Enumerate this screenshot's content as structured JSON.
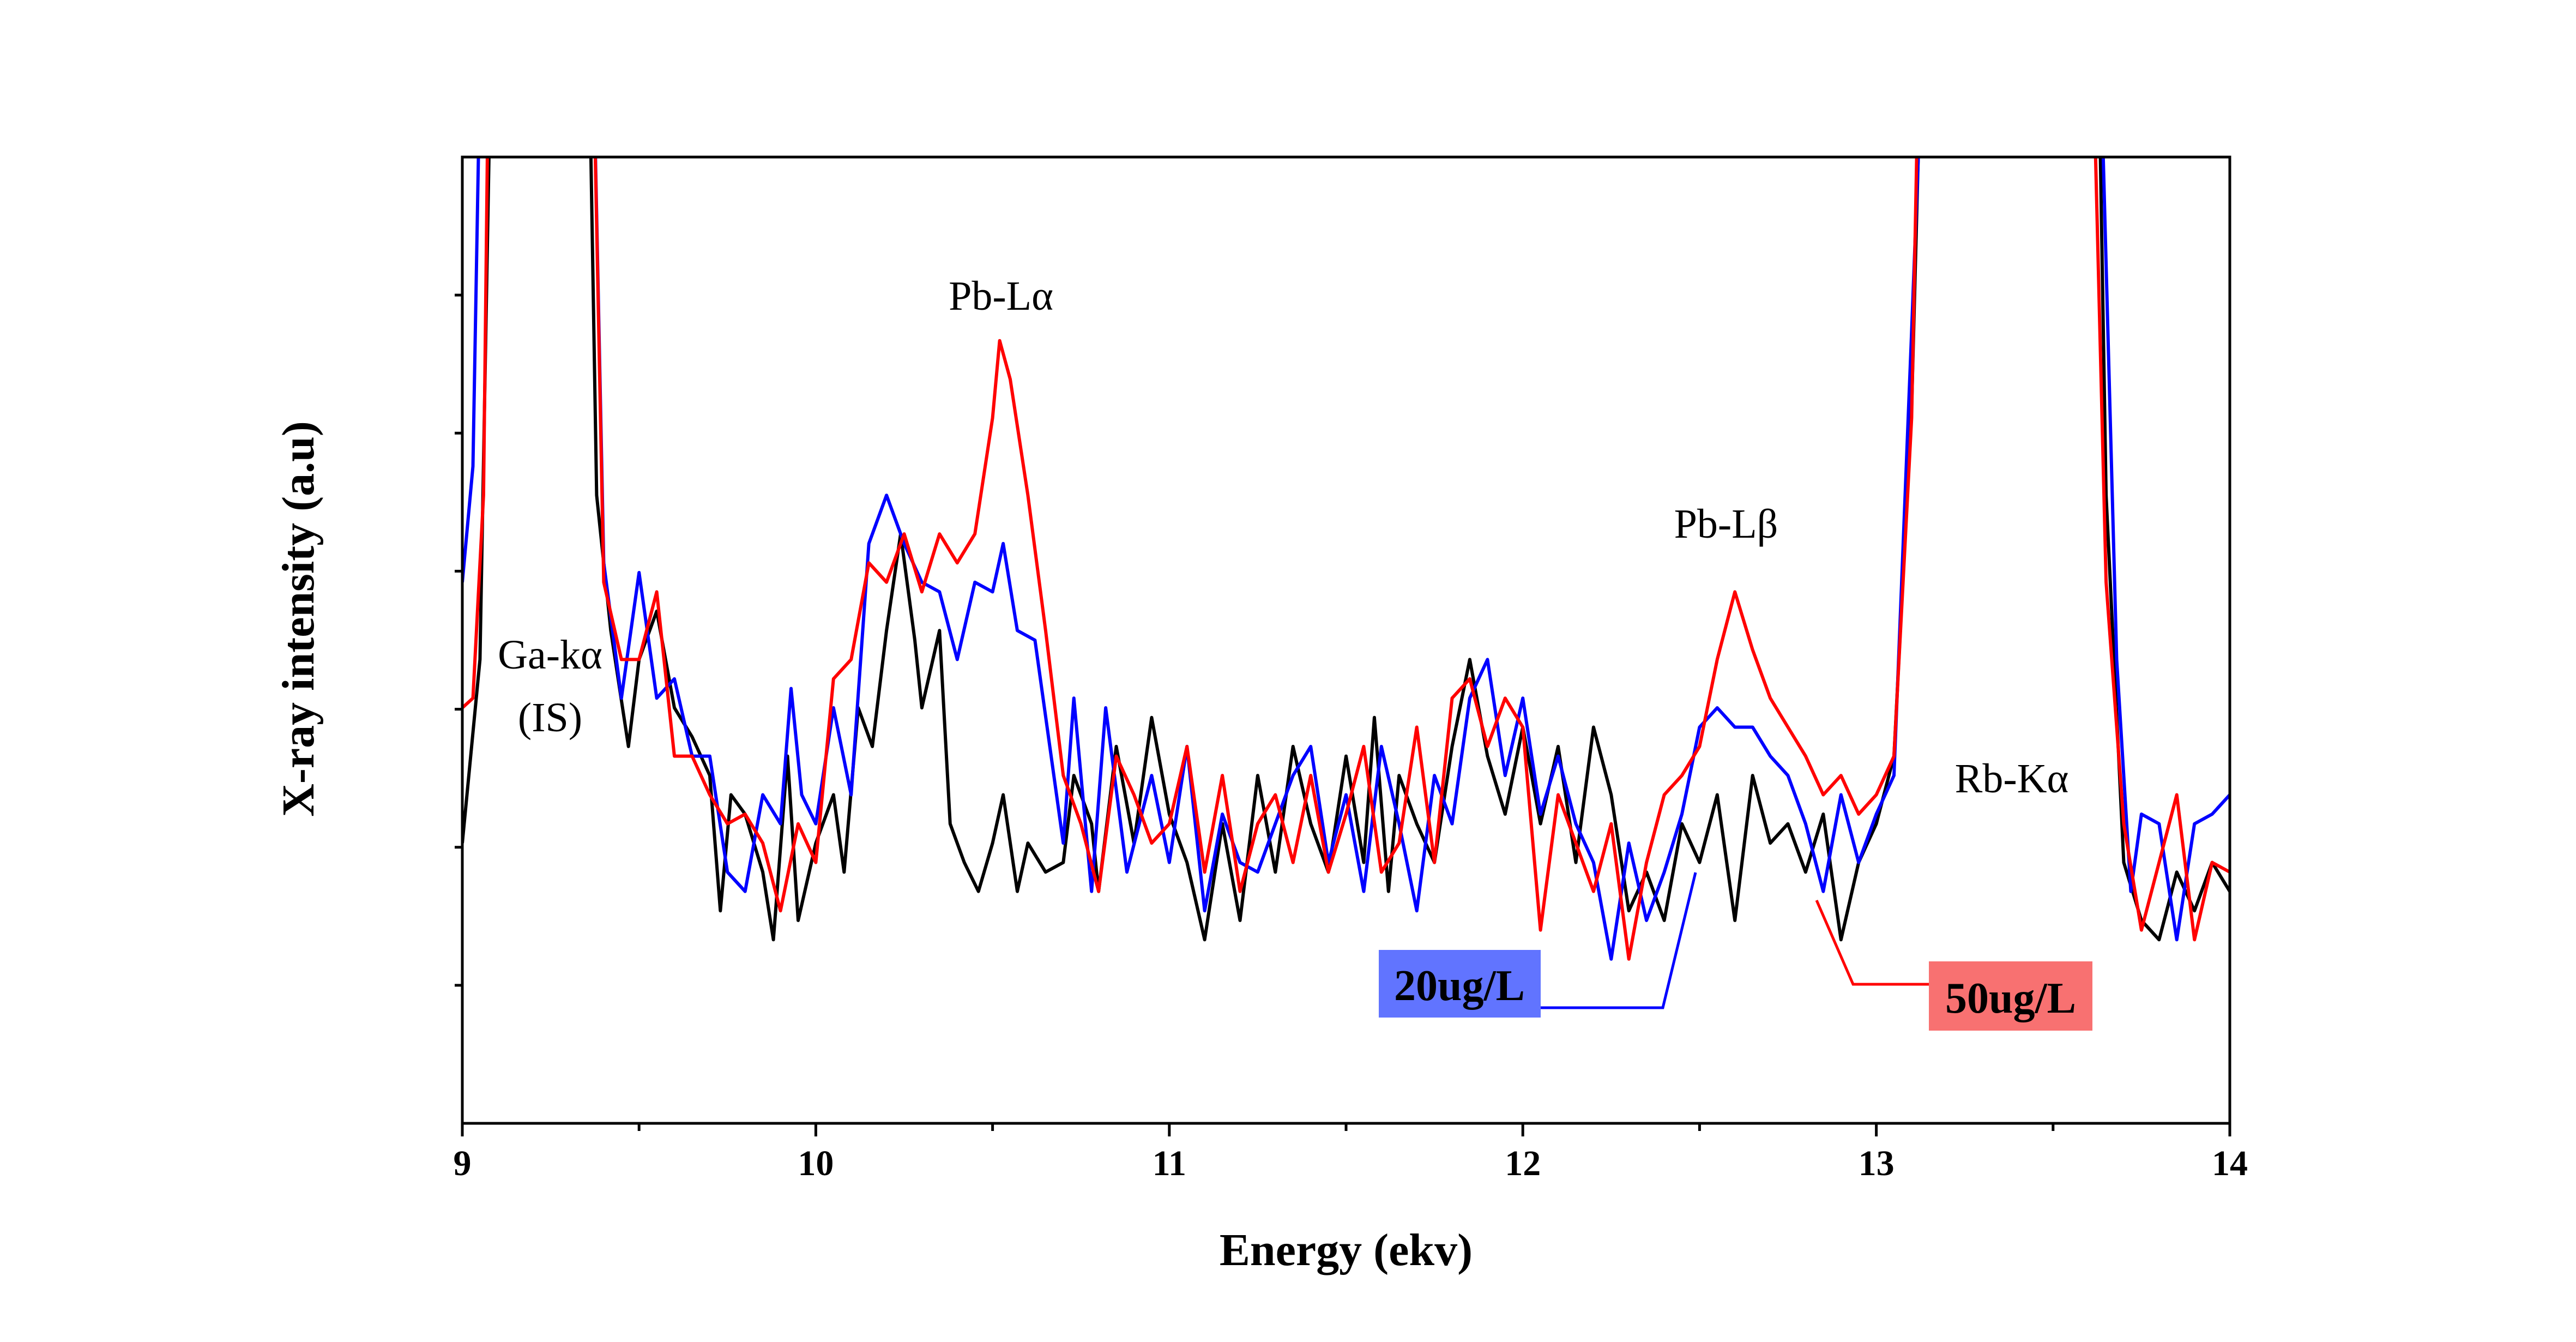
{
  "chart_data": {
    "type": "line",
    "title": "",
    "xlabel": "Energy (ekv)",
    "ylabel": "X-ray intensity (a.u)",
    "xlim": [
      9,
      14
    ],
    "ylim": [
      0,
      100
    ],
    "xticks": [
      "9",
      "10",
      "11",
      "12",
      "13",
      "14"
    ],
    "yticks_labeled": false,
    "grid": false,
    "annotations": {
      "ga": "Ga-kα",
      "is": "(IS)",
      "pb_la": "Pb-Lα",
      "pb_lb": "Pb-Lβ",
      "rb": "Rb-Kα",
      "label_20": "20ug/L",
      "label_50": "50ug/L"
    },
    "colors": {
      "black": "#000000",
      "blue": "#0000ff",
      "red": "#ff0000",
      "box_blue": "#6174ff",
      "box_red": "#f87171"
    },
    "series": [
      {
        "color": "#000000",
        "x": [
          9.0,
          9.05,
          9.09,
          9.35,
          9.38,
          9.42,
          9.47,
          9.5,
          9.55,
          9.6,
          9.65,
          9.7,
          9.73,
          9.76,
          9.8,
          9.85,
          9.88,
          9.92,
          9.95,
          10.0,
          10.05,
          10.08,
          10.12,
          10.16,
          10.2,
          10.24,
          10.28,
          10.3,
          10.35,
          10.38,
          10.42,
          10.46,
          10.5,
          10.53,
          10.57,
          10.6,
          10.65,
          10.7,
          10.73,
          10.78,
          10.8,
          10.85,
          10.9,
          10.95,
          11.0,
          11.05,
          11.1,
          11.15,
          11.2,
          11.25,
          11.3,
          11.35,
          11.4,
          11.45,
          11.5,
          11.55,
          11.58,
          11.62,
          11.65,
          11.7,
          11.75,
          11.8,
          11.85,
          11.9,
          11.95,
          12.0,
          12.05,
          12.1,
          12.15,
          12.2,
          12.25,
          12.3,
          12.35,
          12.4,
          12.45,
          12.5,
          12.55,
          12.6,
          12.65,
          12.7,
          12.75,
          12.8,
          12.85,
          12.9,
          12.95,
          13.0,
          13.05,
          13.1,
          13.14,
          13.62,
          13.65,
          13.7,
          13.75,
          13.8,
          13.85,
          13.9,
          13.95,
          14.0
        ],
        "y": [
          29,
          48,
          130,
          130,
          65,
          51,
          39,
          48,
          53,
          43,
          40,
          36,
          22,
          34,
          32,
          26,
          19,
          38,
          21,
          29,
          34,
          26,
          43,
          39,
          51,
          61,
          50,
          43,
          51,
          31,
          27,
          24,
          29,
          34,
          24,
          29,
          26,
          27,
          36,
          31,
          24,
          39,
          29,
          42,
          32,
          27,
          19,
          31,
          21,
          36,
          26,
          39,
          31,
          26,
          38,
          27,
          42,
          24,
          36,
          31,
          27,
          39,
          48,
          38,
          32,
          41,
          31,
          39,
          27,
          41,
          34,
          22,
          26,
          21,
          31,
          27,
          34,
          21,
          36,
          29,
          31,
          26,
          32,
          19,
          27,
          31,
          38,
          74,
          130,
          130,
          65,
          27,
          21,
          19,
          26,
          22,
          27,
          24
        ]
      },
      {
        "color": "#0000ff",
        "x": [
          9.0,
          9.03,
          9.06,
          9.36,
          9.4,
          9.45,
          9.5,
          9.55,
          9.6,
          9.65,
          9.7,
          9.75,
          9.8,
          9.85,
          9.9,
          9.93,
          9.96,
          10.0,
          10.05,
          10.1,
          10.15,
          10.2,
          10.25,
          10.3,
          10.35,
          10.4,
          10.45,
          10.5,
          10.53,
          10.57,
          10.62,
          10.7,
          10.73,
          10.78,
          10.82,
          10.88,
          10.95,
          11.0,
          11.05,
          11.1,
          11.15,
          11.2,
          11.25,
          11.3,
          11.35,
          11.4,
          11.45,
          11.5,
          11.55,
          11.6,
          11.65,
          11.7,
          11.75,
          11.8,
          11.85,
          11.9,
          11.95,
          12.0,
          12.05,
          12.1,
          12.15,
          12.2,
          12.25,
          12.3,
          12.35,
          12.4,
          12.45,
          12.5,
          12.55,
          12.6,
          12.65,
          12.7,
          12.75,
          12.8,
          12.85,
          12.9,
          12.95,
          13.0,
          13.05,
          13.1,
          13.15,
          13.62,
          13.68,
          13.72,
          13.75,
          13.8,
          13.85,
          13.9,
          13.95,
          14.0
        ],
        "y": [
          56,
          68,
          130,
          130,
          58,
          44,
          57,
          44,
          46,
          38,
          38,
          26,
          24,
          34,
          31,
          45,
          34,
          31,
          43,
          34,
          60,
          65,
          60,
          56,
          55,
          48,
          56,
          55,
          60,
          51,
          50,
          29,
          44,
          24,
          43,
          26,
          36,
          27,
          39,
          22,
          32,
          27,
          26,
          31,
          36,
          39,
          27,
          34,
          24,
          39,
          31,
          22,
          36,
          31,
          44,
          48,
          36,
          44,
          32,
          38,
          31,
          27,
          17,
          29,
          21,
          26,
          32,
          41,
          43,
          41,
          41,
          38,
          36,
          31,
          24,
          34,
          27,
          32,
          36,
          82,
          130,
          130,
          48,
          24,
          32,
          31,
          19,
          31,
          32,
          34
        ]
      },
      {
        "color": "#ff0000",
        "x": [
          9.0,
          9.03,
          9.06,
          9.08,
          9.36,
          9.4,
          9.45,
          9.5,
          9.55,
          9.6,
          9.65,
          9.7,
          9.75,
          9.8,
          9.85,
          9.9,
          9.95,
          10.0,
          10.05,
          10.1,
          10.15,
          10.2,
          10.25,
          10.3,
          10.35,
          10.4,
          10.45,
          10.5,
          10.52,
          10.55,
          10.6,
          10.65,
          10.7,
          10.75,
          10.8,
          10.85,
          10.9,
          10.95,
          11.0,
          11.05,
          11.1,
          11.15,
          11.2,
          11.25,
          11.3,
          11.35,
          11.4,
          11.45,
          11.5,
          11.55,
          11.6,
          11.65,
          11.7,
          11.75,
          11.8,
          11.85,
          11.9,
          11.95,
          12.0,
          12.05,
          12.1,
          12.15,
          12.2,
          12.25,
          12.3,
          12.35,
          12.4,
          12.45,
          12.5,
          12.55,
          12.6,
          12.65,
          12.7,
          12.75,
          12.8,
          12.85,
          12.9,
          12.95,
          13.0,
          13.05,
          13.1,
          13.13,
          13.6,
          13.65,
          13.7,
          13.75,
          13.8,
          13.85,
          13.9,
          13.95,
          14.0
        ],
        "y": [
          43,
          44,
          65,
          130,
          130,
          56,
          48,
          48,
          55,
          38,
          38,
          34,
          31,
          32,
          29,
          22,
          31,
          27,
          46,
          48,
          58,
          56,
          61,
          55,
          61,
          58,
          61,
          73,
          81,
          77,
          65,
          51,
          36,
          31,
          24,
          38,
          34,
          29,
          31,
          39,
          26,
          36,
          24,
          31,
          34,
          27,
          36,
          26,
          32,
          39,
          26,
          29,
          41,
          27,
          44,
          46,
          39,
          44,
          41,
          20,
          34,
          29,
          24,
          31,
          17,
          27,
          34,
          36,
          39,
          48,
          55,
          49,
          44,
          41,
          38,
          34,
          36,
          32,
          34,
          38,
          73,
          130,
          130,
          56,
          31,
          20,
          27,
          34,
          19,
          27,
          26
        ]
      }
    ]
  }
}
